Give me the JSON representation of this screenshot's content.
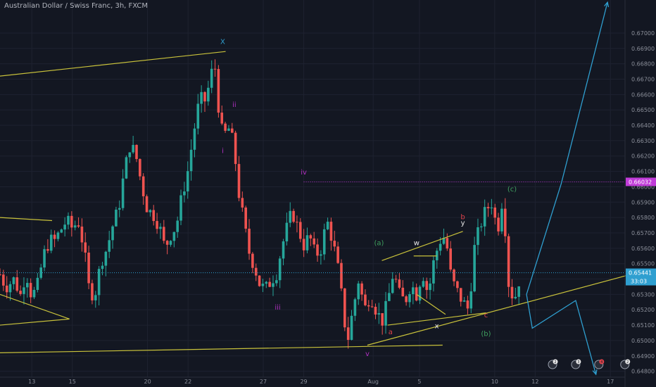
{
  "title": "Australian Dollar / Swiss Franc, 3h, FXCM",
  "colors": {
    "bg": "#131722",
    "grid": "#1e2230",
    "up": "#26a69a",
    "down": "#ef5350",
    "trend": "#c9c23b",
    "projection": "#2f9fd0",
    "price_line": "#2f9fd0",
    "target_line": "#c03bd8",
    "wave_purple": "#b02fc0",
    "wave_green": "#3f9f5f",
    "wave_red": "#e0434b",
    "wave_blue": "#2f9fd0",
    "wave_white": "#e8e8e8"
  },
  "chart_data": {
    "type": "candlestick",
    "symbol": "Australian Dollar / Swiss Franc",
    "timeframe": "3h",
    "source": "FXCM",
    "ylim": [
      0.6478,
      0.6716
    ],
    "y_ticks": [
      "0.67000",
      "0.66900",
      "0.66800",
      "0.66700",
      "0.66600",
      "0.66500",
      "0.66400",
      "0.66300",
      "0.66200",
      "0.66100",
      "0.66000",
      "0.65900",
      "0.65800",
      "0.65700",
      "0.65600",
      "0.65500",
      "0.65400",
      "0.65300",
      "0.65200",
      "0.65100",
      "0.65000",
      "0.64900",
      "0.64800"
    ],
    "x_ticks": [
      "13",
      "15",
      "20",
      "22",
      "27",
      "29",
      "Aug",
      "5",
      "10",
      "12",
      "17"
    ],
    "current_price": "0.65441",
    "countdown": "33:03",
    "target_price": "0.66032",
    "anchors": [
      [
        0,
        0.6543
      ],
      [
        0.02,
        0.6535
      ],
      [
        0.05,
        0.654
      ],
      [
        0.07,
        0.6529
      ],
      [
        0.09,
        0.6545
      ],
      [
        0.11,
        0.6528
      ],
      [
        0.13,
        0.6536
      ],
      [
        0.15,
        0.6555
      ],
      [
        0.17,
        0.6565
      ],
      [
        0.19,
        0.6565
      ],
      [
        0.21,
        0.6572
      ],
      [
        0.23,
        0.6578
      ],
      [
        0.25,
        0.6573
      ],
      [
        0.27,
        0.6578
      ],
      [
        0.29,
        0.656
      ],
      [
        0.31,
        0.653
      ],
      [
        0.33,
        0.6532
      ],
      [
        0.35,
        0.6552
      ],
      [
        0.37,
        0.656
      ],
      [
        0.39,
        0.6575
      ],
      [
        0.41,
        0.6586
      ],
      [
        0.43,
        0.661
      ],
      [
        0.45,
        0.6628
      ],
      [
        0.47,
        0.662
      ],
      [
        0.49,
        0.6601
      ],
      [
        0.51,
        0.6585
      ],
      [
        0.53,
        0.6582
      ],
      [
        0.55,
        0.6575
      ],
      [
        0.57,
        0.656
      ],
      [
        0.59,
        0.6569
      ],
      [
        0.61,
        0.6575
      ],
      [
        0.63,
        0.6595
      ],
      [
        0.65,
        0.6611
      ],
      [
        0.67,
        0.6636
      ],
      [
        0.69,
        0.6657
      ],
      [
        0.71,
        0.6656
      ],
      [
        0.73,
        0.6672
      ],
      [
        0.74,
        0.6686
      ],
      [
        0.75,
        0.666
      ],
      [
        0.77,
        0.6632
      ],
      [
        0.79,
        0.6638
      ],
      [
        0.81,
        0.6626
      ],
      [
        0.82,
        0.6602
      ],
      [
        0.84,
        0.658
      ],
      [
        0.86,
        0.6558
      ],
      [
        0.88,
        0.6548
      ],
      [
        0.9,
        0.6535
      ],
      [
        0.92,
        0.6534
      ],
      [
        0.94,
        0.654
      ],
      [
        0.96,
        0.6545
      ],
      [
        0.97,
        0.6558
      ],
      [
        0.99,
        0.6572
      ],
      [
        1.01,
        0.6584
      ],
      [
        1.03,
        0.6573
      ],
      [
        1.05,
        0.6562
      ],
      [
        1.07,
        0.6568
      ],
      [
        1.09,
        0.6555
      ],
      [
        1.11,
        0.656
      ],
      [
        1.13,
        0.6578
      ],
      [
        1.15,
        0.6565
      ],
      [
        1.17,
        0.6545
      ],
      [
        1.18,
        0.653
      ],
      [
        1.2,
        0.6498
      ],
      [
        1.22,
        0.652
      ],
      [
        1.24,
        0.654
      ],
      [
        1.26,
        0.652
      ],
      [
        1.28,
        0.653
      ],
      [
        1.3,
        0.652
      ],
      [
        1.32,
        0.6512
      ],
      [
        1.34,
        0.6525
      ],
      [
        1.36,
        0.6545
      ],
      [
        1.38,
        0.653
      ],
      [
        1.4,
        0.6525
      ],
      [
        1.42,
        0.6537
      ],
      [
        1.44,
        0.653
      ],
      [
        1.46,
        0.6545
      ],
      [
        1.48,
        0.653
      ],
      [
        1.5,
        0.6552
      ],
      [
        1.52,
        0.6565
      ],
      [
        1.54,
        0.6568
      ],
      [
        1.56,
        0.654
      ],
      [
        1.58,
        0.6532
      ],
      [
        1.6,
        0.6525
      ],
      [
        1.62,
        0.652
      ],
      [
        1.64,
        0.656
      ],
      [
        1.66,
        0.6575
      ],
      [
        1.68,
        0.6585
      ],
      [
        1.7,
        0.659
      ],
      [
        1.72,
        0.657
      ],
      [
        1.73,
        0.6588
      ],
      [
        1.74,
        0.6592
      ],
      [
        1.76,
        0.6532
      ],
      [
        1.78,
        0.6528
      ],
      [
        1.8,
        0.6544
      ]
    ],
    "trendlines": [
      {
        "from": [
          0.0,
          0.6672
        ],
        "to": [
          0.78,
          0.6688
        ]
      },
      {
        "from": [
          0.0,
          0.658
        ],
        "to": [
          0.18,
          0.6578
        ]
      },
      {
        "from": [
          0.0,
          0.653
        ],
        "to": [
          0.24,
          0.6514
        ]
      },
      {
        "from": [
          0.0,
          0.651
        ],
        "to": [
          0.24,
          0.6514
        ]
      },
      {
        "from": [
          0.0,
          0.6492
        ],
        "to": [
          1.53,
          0.6497
        ]
      },
      {
        "from": [
          1.27,
          0.6497
        ],
        "to": [
          2.18,
          0.6543
        ]
      },
      {
        "from": [
          1.32,
          0.6552
        ],
        "to": [
          1.6,
          0.6571
        ]
      },
      {
        "from": [
          1.43,
          0.6555
        ],
        "to": [
          1.51,
          0.6555
        ]
      },
      {
        "from": [
          1.44,
          0.653
        ],
        "to": [
          1.54,
          0.6517
        ]
      },
      {
        "from": [
          1.34,
          0.651
        ],
        "to": [
          1.68,
          0.6518
        ]
      }
    ],
    "projection": [
      [
        1.82,
        0.653
      ],
      [
        1.84,
        0.6508
      ],
      [
        1.99,
        0.6526
      ],
      [
        2.06,
        0.6478
      ]
    ],
    "projection_up": [
      [
        1.82,
        0.653
      ],
      [
        1.94,
        0.6602
      ],
      [
        2.1,
        0.672
      ]
    ],
    "wave_labels": [
      {
        "text": "X",
        "x": 0.77,
        "y": 0.6693,
        "color": "wave_blue"
      },
      {
        "text": "ii",
        "x": 0.81,
        "y": 0.6652,
        "color": "wave_purple"
      },
      {
        "text": "i",
        "x": 0.77,
        "y": 0.6622,
        "color": "wave_purple"
      },
      {
        "text": "iv",
        "x": 1.05,
        "y": 0.6608,
        "color": "wave_purple"
      },
      {
        "text": "iii",
        "x": 0.96,
        "y": 0.652,
        "color": "wave_purple"
      },
      {
        "text": "v",
        "x": 1.27,
        "y": 0.649,
        "color": "wave_purple"
      },
      {
        "text": "(a)",
        "x": 1.31,
        "y": 0.6562,
        "color": "wave_green"
      },
      {
        "text": "w",
        "x": 1.44,
        "y": 0.6562,
        "color": "wave_white"
      },
      {
        "text": "x",
        "x": 1.51,
        "y": 0.6508,
        "color": "wave_white"
      },
      {
        "text": "y",
        "x": 1.6,
        "y": 0.6575,
        "color": "wave_white"
      },
      {
        "text": "a",
        "x": 1.35,
        "y": 0.6504,
        "color": "wave_red"
      },
      {
        "text": "b",
        "x": 1.6,
        "y": 0.6579,
        "color": "wave_red"
      },
      {
        "text": "c",
        "x": 1.68,
        "y": 0.6515,
        "color": "wave_red"
      },
      {
        "text": "(b)",
        "x": 1.68,
        "y": 0.6503,
        "color": "wave_green"
      },
      {
        "text": "(c)",
        "x": 1.77,
        "y": 0.6597,
        "color": "wave_green"
      }
    ],
    "events": [
      {
        "x": 1.91,
        "count": "2"
      },
      {
        "x": 1.99,
        "count": "3"
      },
      {
        "x": 2.07,
        "count": "4"
      },
      {
        "x": 2.16,
        "count": "2"
      }
    ]
  }
}
